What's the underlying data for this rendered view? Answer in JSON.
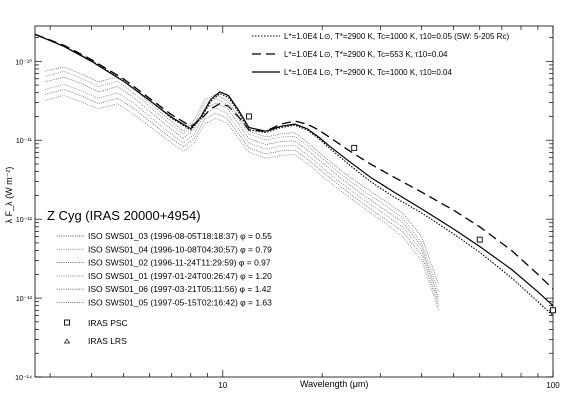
{
  "chart_data": {
    "type": "line",
    "title": "Z Cyg  (IRAS 20000+4954)",
    "xlabel": "Wavelength (μm)",
    "ylabel": "λ F_λ (W m⁻²)",
    "xscale": "log",
    "yscale": "log",
    "xlim": [
      2.7,
      100
    ],
    "ylim": [
      1e-14,
      2.8e-10
    ],
    "x_tick_labels": [
      {
        "value": 10,
        "label": "10"
      },
      {
        "value": 100,
        "label": "100"
      }
    ],
    "y_tick_labels": [
      {
        "value": 1e-10,
        "label": "10⁻¹⁰"
      },
      {
        "value": 1e-11,
        "label": "10⁻¹¹"
      },
      {
        "value": 1e-12,
        "label": "10⁻¹²"
      },
      {
        "value": 1e-13,
        "label": "10⁻¹³"
      },
      {
        "value": 1e-14,
        "label": "10⁻¹⁴"
      }
    ],
    "grid": false,
    "model_legend_position": "top-right",
    "observation_legend_position": "lower-left",
    "series": [
      {
        "name": "L*=1.0E4 L⊙, T*=2900 K, Tc=1000 K, τ10=0.05 (SW: 5-205 Rc)",
        "style": "dotted",
        "x": [
          2.7,
          3.3,
          4,
          5,
          6,
          7,
          8,
          8.6,
          9.2,
          9.8,
          10.4,
          11.2,
          12,
          13.5,
          15,
          16.5,
          18,
          19.5,
          21,
          24,
          28,
          33,
          40,
          50,
          60,
          75,
          90,
          100
        ],
        "y": [
          2.2e-10,
          1.55e-10,
          1.02e-10,
          5.7e-11,
          3.2e-11,
          1.9e-11,
          1.35e-11,
          1.9e-11,
          3.1e-11,
          3.9e-11,
          3.5e-11,
          2.2e-11,
          1.35e-11,
          1.25e-11,
          1.45e-11,
          1.55e-11,
          1.35e-11,
          1.05e-11,
          8e-12,
          5e-12,
          3e-12,
          1.9e-12,
          1.2e-12,
          6.5e-13,
          3.8e-13,
          1.8e-13,
          9e-14,
          6e-14
        ]
      },
      {
        "name": "L*=1.0E4 L⊙, T*=2900 K, Tc=553 K, τ10=0.04",
        "style": "dashed",
        "x": [
          2.7,
          3.3,
          4,
          5,
          6,
          7,
          8,
          8.6,
          9.2,
          9.8,
          10.4,
          11.2,
          12,
          13.5,
          15,
          16.5,
          18,
          19.5,
          21,
          24,
          28,
          33,
          40,
          50,
          60,
          75,
          90,
          100
        ],
        "y": [
          2.2e-10,
          1.6e-10,
          1.05e-10,
          6e-11,
          3.4e-11,
          2.1e-11,
          1.5e-11,
          1.85e-11,
          2.5e-11,
          2.9e-11,
          2.7e-11,
          1.95e-11,
          1.35e-11,
          1.3e-11,
          1.6e-11,
          1.75e-11,
          1.6e-11,
          1.35e-11,
          1.1e-11,
          7.5e-12,
          5e-12,
          3.4e-12,
          2.2e-12,
          1.3e-12,
          8e-13,
          4e-13,
          2e-13,
          1.3e-13
        ]
      },
      {
        "name": "L*=1.0E4 L⊙, T*=2900 K, Tc=1000 K, τ10=0.04",
        "style": "solid",
        "x": [
          2.7,
          3.3,
          4,
          5,
          6,
          7,
          8,
          8.6,
          9.2,
          9.8,
          10.4,
          11.2,
          12,
          13.5,
          15,
          16.5,
          18,
          19.5,
          21,
          24,
          28,
          33,
          40,
          50,
          60,
          75,
          90,
          100
        ],
        "y": [
          2.2e-10,
          1.55e-10,
          1e-10,
          5.6e-11,
          3.2e-11,
          1.95e-11,
          1.4e-11,
          2e-11,
          3.3e-11,
          4.1e-11,
          3.7e-11,
          2.35e-11,
          1.45e-11,
          1.3e-11,
          1.5e-11,
          1.6e-11,
          1.4e-11,
          1.1e-11,
          8.5e-12,
          5.5e-12,
          3.4e-12,
          2.2e-12,
          1.35e-12,
          7.5e-13,
          4.5e-13,
          2.3e-13,
          1.2e-13,
          8e-14
        ]
      },
      {
        "name": "ISO SWS01_03 (1996-08-05T18:18:37) φ = 0.55",
        "style": "dotted",
        "x": [
          2.9,
          3.3,
          3.7,
          4.2,
          4.8,
          5.4,
          6,
          6.8,
          7.6,
          8.2,
          8.8,
          9.5,
          10.3,
          11,
          12,
          13.5,
          15,
          16.5,
          18,
          20,
          23,
          27,
          31,
          35,
          40,
          45
        ],
        "y": [
          7.5e-11,
          8.5e-11,
          7e-11,
          5.5e-11,
          6.3e-11,
          4.4e-11,
          3e-11,
          1.9e-11,
          1.3e-11,
          1.8e-11,
          3.2e-11,
          3.8e-11,
          3.2e-11,
          2.2e-11,
          1.3e-11,
          1.1e-11,
          1.2e-11,
          1.25e-11,
          9.5e-12,
          6.5e-12,
          4e-12,
          2.5e-12,
          1.7e-12,
          1.2e-12,
          6e-13,
          1.5e-13
        ]
      },
      {
        "name": "ISO SWS01_04 (1996-10-08T04:30:57) φ = 0.79",
        "style": "dotted",
        "x": [
          2.9,
          3.3,
          3.7,
          4.2,
          4.8,
          5.4,
          6,
          6.8,
          7.6,
          8.2,
          8.8,
          9.5,
          10.3,
          11,
          12,
          13.5,
          15,
          16.5,
          18,
          20,
          23,
          27,
          31,
          35,
          40,
          45
        ],
        "y": [
          6.5e-11,
          7.5e-11,
          6.2e-11,
          4.8e-11,
          5.6e-11,
          3.9e-11,
          2.7e-11,
          1.7e-11,
          1.2e-11,
          1.6e-11,
          2.9e-11,
          3.4e-11,
          2.9e-11,
          2e-11,
          1.2e-11,
          1e-11,
          1.1e-11,
          1.12e-11,
          8.6e-12,
          5.9e-12,
          3.6e-12,
          2.2e-12,
          1.5e-12,
          1.05e-12,
          5e-13,
          1.2e-13
        ]
      },
      {
        "name": "ISO SWS01_02 (1996-11-24T11:29:59) φ = 0.97",
        "style": "dotted",
        "x": [
          2.9,
          3.3,
          3.7,
          4.2,
          4.8,
          5.4,
          6,
          6.8,
          7.6,
          8.2,
          8.8,
          9.5,
          10.3,
          11,
          12,
          13.5,
          15,
          16.5,
          18,
          20,
          23,
          27,
          31,
          35,
          40,
          45
        ],
        "y": [
          5.5e-11,
          6.3e-11,
          5.3e-11,
          4.1e-11,
          4.8e-11,
          3.4e-11,
          2.35e-11,
          1.5e-11,
          1.05e-11,
          1.4e-11,
          2.5e-11,
          2.95e-11,
          2.55e-11,
          1.75e-11,
          1.05e-11,
          8.8e-12,
          9.6e-12,
          9.8e-12,
          7.6e-12,
          5.2e-12,
          3.2e-12,
          1.95e-12,
          1.3e-12,
          9.2e-13,
          4.5e-13,
          1e-13
        ]
      },
      {
        "name": "ISO SWS01_01 (1997-01-24T00:26:47) φ = 1.20",
        "style": "dotted",
        "x": [
          2.9,
          3.3,
          3.7,
          4.2,
          4.8,
          5.4,
          6,
          6.8,
          7.6,
          8.2,
          8.8,
          9.5,
          10.3,
          11,
          12,
          13.5,
          15,
          16.5,
          18,
          20,
          23,
          27,
          31,
          35,
          40,
          45
        ],
        "y": [
          4.4e-11,
          5.1e-11,
          4.3e-11,
          3.4e-11,
          4e-11,
          2.9e-11,
          2e-11,
          1.3e-11,
          9.2e-12,
          1.2e-11,
          2.15e-11,
          2.55e-11,
          2.2e-11,
          1.5e-11,
          9.2e-12,
          7.7e-12,
          8.4e-12,
          8.6e-12,
          6.6e-12,
          4.5e-12,
          2.8e-12,
          1.7e-12,
          1.15e-12,
          8e-13,
          4e-13,
          9e-14
        ]
      },
      {
        "name": "ISO SWS01_06 (1997-03-21T05:11:56) φ = 1.42",
        "style": "dotted",
        "x": [
          2.9,
          3.3,
          3.7,
          4.2,
          4.8,
          5.4,
          6,
          6.8,
          7.6,
          8.2,
          8.8,
          9.5,
          10.3,
          11,
          12,
          13.5,
          15,
          16.5,
          18,
          20,
          23,
          27,
          31,
          35,
          40,
          45
        ],
        "y": [
          3.8e-11,
          4.4e-11,
          3.7e-11,
          2.9e-11,
          3.4e-11,
          2.5e-11,
          1.75e-11,
          1.15e-11,
          8.2e-12,
          1.05e-11,
          1.85e-11,
          2.2e-11,
          1.9e-11,
          1.3e-11,
          8e-12,
          6.7e-12,
          7.3e-12,
          7.5e-12,
          5.8e-12,
          4e-12,
          2.5e-12,
          1.5e-12,
          1e-12,
          7e-13,
          3.5e-13,
          8e-14
        ]
      },
      {
        "name": "ISO SWS01_05 (1997-05-15T02:16:42) φ = 1.63",
        "style": "dotted",
        "x": [
          2.9,
          3.3,
          3.7,
          4.2,
          4.8,
          5.4,
          6,
          6.8,
          7.6,
          8.2,
          8.8,
          9.5,
          10.3,
          11,
          12,
          13.5,
          15,
          16.5,
          18,
          20,
          23,
          27,
          31,
          35,
          40,
          45
        ],
        "y": [
          3.2e-11,
          3.7e-11,
          3.1e-11,
          2.5e-11,
          2.9e-11,
          2.1e-11,
          1.5e-11,
          1e-11,
          7.2e-12,
          9.2e-12,
          1.6e-11,
          1.9e-11,
          1.65e-11,
          1.15e-11,
          7e-12,
          5.9e-12,
          6.4e-12,
          6.6e-12,
          5.1e-12,
          3.5e-12,
          2.2e-12,
          1.35e-12,
          9e-13,
          6e-13,
          3e-13,
          7e-14
        ]
      },
      {
        "name": "IRAS PSC",
        "style": "square-markers",
        "x": [
          12,
          25,
          60,
          100
        ],
        "y": [
          2e-11,
          8e-12,
          5.5e-13,
          7e-14
        ]
      },
      {
        "name": "IRAS LRS",
        "style": "triangle-markers",
        "x": [],
        "y": []
      }
    ]
  }
}
